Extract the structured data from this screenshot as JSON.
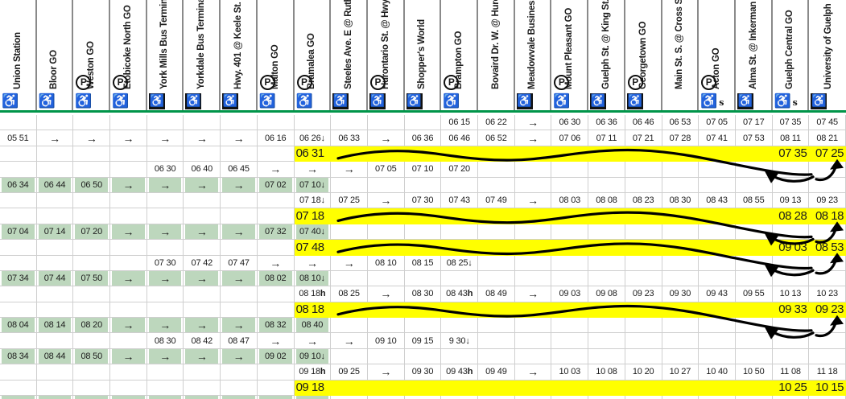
{
  "colors": {
    "yellow_band": "#ffff00",
    "green_cell": "#bdd7bd",
    "header_line": "#009549",
    "grid_line": "#cfcfcf",
    "column_divider": "#8a8a8a",
    "icon_gray": "#9f9f9f"
  },
  "icons": {
    "wheelchair": "♿",
    "parking_label": "P"
  },
  "timetable": {
    "columns": [
      {
        "name": "Union Station",
        "parking": false,
        "access": "black",
        "flag": ""
      },
      {
        "name": "Bloor GO",
        "parking": false,
        "access": "gray",
        "flag": ""
      },
      {
        "name": "Weston GO",
        "parking": true,
        "access": "gray",
        "flag": ""
      },
      {
        "name": "Etobicoke North GO",
        "parking": true,
        "access": "gray",
        "flag": ""
      },
      {
        "name": "York Mills Bus Terminal",
        "parking": false,
        "access": "square",
        "flag": ""
      },
      {
        "name": "Yorkdale Bus Terminal",
        "parking": false,
        "access": "square",
        "flag": ""
      },
      {
        "name": "Hwy. 401 @ Keele St.",
        "parking": false,
        "access": "square",
        "flag": ""
      },
      {
        "name": "Malton GO",
        "parking": true,
        "access": "black",
        "flag": ""
      },
      {
        "name": "Bramalea GO",
        "parking": true,
        "access": "black",
        "flag": ""
      },
      {
        "name": "Steeles Ave. E @ Ruth",
        "parking": false,
        "access": "square",
        "flag": ""
      },
      {
        "name": "Hurontario St. @ Hwy.",
        "parking": true,
        "access": "square",
        "flag": ""
      },
      {
        "name": "Shopper's World",
        "parking": false,
        "access": "square",
        "flag": ""
      },
      {
        "name": "Brampton GO",
        "parking": true,
        "access": "black",
        "flag": ""
      },
      {
        "name": "Bovaird Dr. W. @ Huro",
        "parking": false,
        "access": "none",
        "flag": ""
      },
      {
        "name": "Meadowvale Business",
        "parking": false,
        "access": "square",
        "flag": ""
      },
      {
        "name": "Mount Pleasant GO",
        "parking": true,
        "access": "black",
        "flag": ""
      },
      {
        "name": "Guelph St. @ King St.",
        "parking": false,
        "access": "square",
        "flag": ""
      },
      {
        "name": "Georgetown GO",
        "parking": true,
        "access": "square",
        "flag": ""
      },
      {
        "name": "Main St. S. @ Cross St",
        "parking": false,
        "access": "none",
        "flag": ""
      },
      {
        "name": "Acton GO",
        "parking": true,
        "access": "gray",
        "flag": "s"
      },
      {
        "name": "Alma St. @ Inkerman S",
        "parking": false,
        "access": "square",
        "flag": ""
      },
      {
        "name": "Guelph Central GO",
        "parking": false,
        "access": "black",
        "flag": "s"
      },
      {
        "name": "University of Guelph",
        "parking": false,
        "access": "square",
        "flag": ""
      }
    ],
    "rows": [
      {
        "type": "plain",
        "cells": [
          [
            13,
            "06 15"
          ],
          [
            14,
            "06 22"
          ],
          [
            15,
            "→"
          ],
          [
            16,
            "06 30"
          ],
          [
            17,
            "06 36"
          ],
          [
            18,
            "06 46"
          ],
          [
            19,
            "06 53"
          ],
          [
            20,
            "07 05"
          ],
          [
            21,
            "07 17"
          ],
          [
            22,
            "07 35"
          ],
          [
            23,
            "07 45"
          ]
        ]
      },
      {
        "type": "plain",
        "cells": [
          [
            1,
            "05 51"
          ],
          [
            2,
            "→"
          ],
          [
            3,
            "→"
          ],
          [
            4,
            "→"
          ],
          [
            5,
            "→"
          ],
          [
            6,
            "→"
          ],
          [
            7,
            "→"
          ],
          [
            8,
            "06 16"
          ],
          [
            9,
            "06 26↓"
          ],
          [
            10,
            "06 33"
          ],
          [
            11,
            "→"
          ],
          [
            12,
            "06 36"
          ],
          [
            13,
            "06 46"
          ],
          [
            14,
            "06 52"
          ],
          [
            15,
            "→"
          ],
          [
            16,
            "07 06"
          ],
          [
            17,
            "07 11"
          ],
          [
            18,
            "07 21"
          ],
          [
            19,
            "07 28"
          ],
          [
            20,
            "07 41"
          ],
          [
            21,
            "07 53"
          ],
          [
            22,
            "08 11"
          ],
          [
            23,
            "08 21"
          ]
        ]
      },
      {
        "type": "yellow",
        "squiggle": true,
        "cells": [
          [
            9,
            "06 31"
          ],
          [
            22,
            "07 35"
          ],
          [
            23,
            "07 25"
          ]
        ]
      },
      {
        "type": "plain",
        "cells": [
          [
            5,
            "06 30"
          ],
          [
            6,
            "06 40"
          ],
          [
            7,
            "06 45"
          ],
          [
            8,
            "→"
          ],
          [
            9,
            "→"
          ],
          [
            10,
            "→"
          ],
          [
            11,
            "07 05"
          ],
          [
            12,
            "07 10"
          ],
          [
            13,
            "07 20"
          ]
        ]
      },
      {
        "type": "green",
        "cells": [
          [
            1,
            "06 34"
          ],
          [
            2,
            "06 44"
          ],
          [
            3,
            "06 50"
          ],
          [
            4,
            "→"
          ],
          [
            5,
            "→"
          ],
          [
            6,
            "→"
          ],
          [
            7,
            "→"
          ],
          [
            8,
            "07 02"
          ],
          [
            9,
            "07 10↓"
          ]
        ]
      },
      {
        "type": "plain",
        "cells": [
          [
            9,
            "07 18↓"
          ],
          [
            10,
            "07 25"
          ],
          [
            11,
            "→"
          ],
          [
            12,
            "07 30"
          ],
          [
            13,
            "07 43"
          ],
          [
            14,
            "07 49"
          ],
          [
            15,
            "→"
          ],
          [
            16,
            "08 03"
          ],
          [
            17,
            "08 08"
          ],
          [
            18,
            "08 23"
          ],
          [
            19,
            "08 30"
          ],
          [
            20,
            "08 43"
          ],
          [
            21,
            "08 55"
          ],
          [
            22,
            "09 13"
          ],
          [
            23,
            "09 23"
          ]
        ]
      },
      {
        "type": "yellow",
        "squiggle": true,
        "cells": [
          [
            9,
            "07 18"
          ],
          [
            22,
            "08 28"
          ],
          [
            23,
            "08 18"
          ]
        ]
      },
      {
        "type": "green",
        "cells": [
          [
            1,
            "07 04"
          ],
          [
            2,
            "07 14"
          ],
          [
            3,
            "07 20"
          ],
          [
            4,
            "→"
          ],
          [
            5,
            "→"
          ],
          [
            6,
            "→"
          ],
          [
            7,
            "→"
          ],
          [
            8,
            "07 32"
          ],
          [
            9,
            "07 40↓"
          ]
        ]
      },
      {
        "type": "yellow",
        "squiggle": true,
        "cells": [
          [
            9,
            "07 48"
          ],
          [
            22,
            "09 03"
          ],
          [
            23,
            "08 53"
          ]
        ]
      },
      {
        "type": "plain",
        "cells": [
          [
            5,
            "07 30"
          ],
          [
            6,
            "07 42"
          ],
          [
            7,
            "07 47"
          ],
          [
            8,
            "→"
          ],
          [
            9,
            "→"
          ],
          [
            10,
            "→"
          ],
          [
            11,
            "08 10"
          ],
          [
            12,
            "08 15"
          ],
          [
            13,
            "08 25↓"
          ]
        ]
      },
      {
        "type": "green",
        "cells": [
          [
            1,
            "07 34"
          ],
          [
            2,
            "07 44"
          ],
          [
            3,
            "07 50"
          ],
          [
            4,
            "→"
          ],
          [
            5,
            "→"
          ],
          [
            6,
            "→"
          ],
          [
            7,
            "→"
          ],
          [
            8,
            "08 02"
          ],
          [
            9,
            "08 10↓"
          ]
        ]
      },
      {
        "type": "plain",
        "cells": [
          [
            9,
            "08 18h"
          ],
          [
            10,
            "08 25"
          ],
          [
            11,
            "→"
          ],
          [
            12,
            "08 30"
          ],
          [
            13,
            "08 43h"
          ],
          [
            14,
            "08 49"
          ],
          [
            15,
            "→"
          ],
          [
            16,
            "09 03"
          ],
          [
            17,
            "09 08"
          ],
          [
            18,
            "09 23"
          ],
          [
            19,
            "09 30"
          ],
          [
            20,
            "09 43"
          ],
          [
            21,
            "09 55"
          ],
          [
            22,
            "10 13"
          ],
          [
            23,
            "10 23"
          ]
        ]
      },
      {
        "type": "yellow",
        "squiggle": true,
        "cells": [
          [
            9,
            "08 18"
          ],
          [
            22,
            "09 33"
          ],
          [
            23,
            "09 23"
          ]
        ]
      },
      {
        "type": "green",
        "cells": [
          [
            1,
            "08 04"
          ],
          [
            2,
            "08 14"
          ],
          [
            3,
            "08 20"
          ],
          [
            4,
            "→"
          ],
          [
            5,
            "→"
          ],
          [
            6,
            "→"
          ],
          [
            7,
            "→"
          ],
          [
            8,
            "08 32"
          ],
          [
            9,
            "08 40"
          ]
        ]
      },
      {
        "type": "plain",
        "cells": [
          [
            5,
            "08 30"
          ],
          [
            6,
            "08 42"
          ],
          [
            7,
            "08 47"
          ],
          [
            8,
            "→"
          ],
          [
            9,
            "→"
          ],
          [
            10,
            "→"
          ],
          [
            11,
            "09 10"
          ],
          [
            12,
            "09 15"
          ],
          [
            13,
            "9 30↓"
          ]
        ]
      },
      {
        "type": "green",
        "cells": [
          [
            1,
            "08 34"
          ],
          [
            2,
            "08 44"
          ],
          [
            3,
            "08 50"
          ],
          [
            4,
            "→"
          ],
          [
            5,
            "→"
          ],
          [
            6,
            "→"
          ],
          [
            7,
            "→"
          ],
          [
            8,
            "09 02"
          ],
          [
            9,
            "09 10↓"
          ]
        ]
      },
      {
        "type": "plain",
        "cells": [
          [
            9,
            "09 18h"
          ],
          [
            10,
            "09 25"
          ],
          [
            11,
            "→"
          ],
          [
            12,
            "09 30"
          ],
          [
            13,
            "09 43h"
          ],
          [
            14,
            "09 49"
          ],
          [
            15,
            "→"
          ],
          [
            16,
            "10 03"
          ],
          [
            17,
            "10 08"
          ],
          [
            18,
            "10 20"
          ],
          [
            19,
            "10 27"
          ],
          [
            20,
            "10 40"
          ],
          [
            21,
            "10 50"
          ],
          [
            22,
            "11 08"
          ],
          [
            23,
            "11 18"
          ]
        ]
      },
      {
        "type": "yellow",
        "squiggle": false,
        "cells": [
          [
            9,
            "09 18"
          ],
          [
            22,
            "10 25"
          ],
          [
            23,
            "10 15"
          ]
        ]
      },
      {
        "type": "green",
        "cells": []
      }
    ]
  }
}
